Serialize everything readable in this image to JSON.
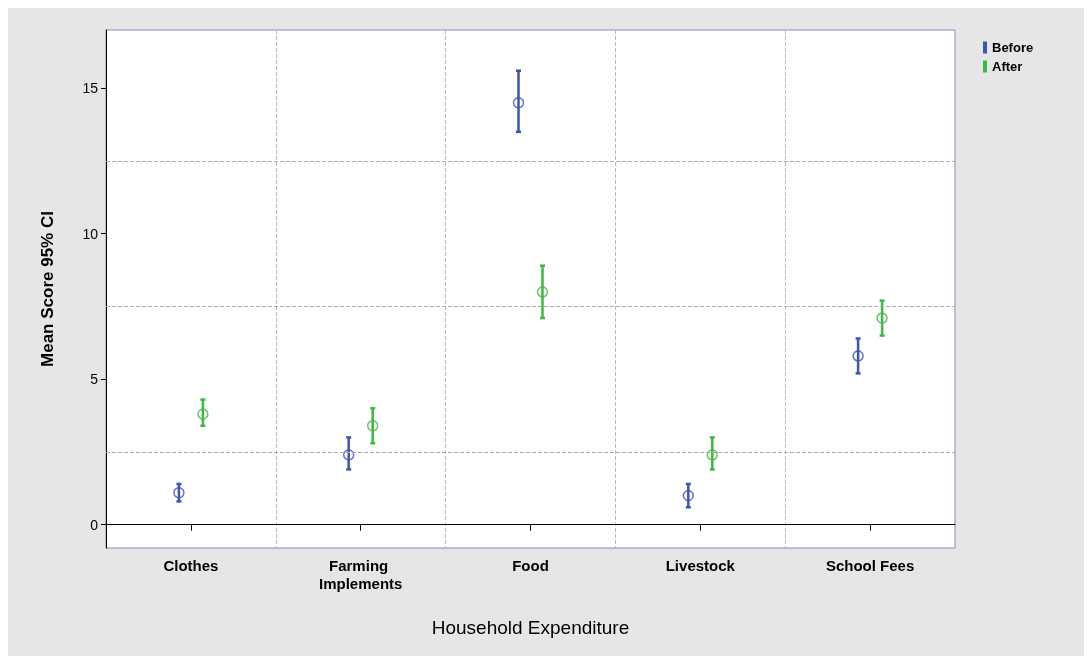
{
  "chart_data": {
    "type": "scatter",
    "xlabel": "Household Expenditure",
    "ylabel": "Mean Score 95% CI",
    "categories": [
      "Clothes",
      "Farming Implements",
      "Food",
      "Livestock",
      "School Fees"
    ],
    "series": [
      {
        "name": "Before",
        "color": "#3b55b5",
        "values": [
          1.1,
          2.4,
          14.5,
          1.0,
          5.8
        ],
        "errors": [
          [
            0.8,
            1.4
          ],
          [
            1.9,
            3.0
          ],
          [
            13.5,
            15.6
          ],
          [
            0.6,
            1.4
          ],
          [
            5.2,
            6.4
          ]
        ]
      },
      {
        "name": "After",
        "color": "#3cb843",
        "values": [
          3.8,
          3.4,
          8.0,
          2.4,
          7.1
        ],
        "errors": [
          [
            3.4,
            4.3
          ],
          [
            2.8,
            4.0
          ],
          [
            7.1,
            8.9
          ],
          [
            1.9,
            3.0
          ],
          [
            6.5,
            7.7
          ]
        ]
      }
    ],
    "ylim": [
      -0.8,
      17
    ],
    "yticks": [
      0,
      5,
      10,
      15
    ],
    "grid": "x",
    "legend": "top right",
    "marker": "circle",
    "ref_lines": [
      {
        "axis": "y",
        "value": 2.5,
        "color": "#aaaaaa",
        "line_style": "dashed"
      },
      {
        "axis": "y",
        "value": 7.5,
        "color": "#aaaaaa",
        "line_style": "dashed"
      },
      {
        "axis": "y",
        "value": 12.5,
        "color": "#aaaaaa",
        "line_style": "dashed"
      }
    ]
  }
}
